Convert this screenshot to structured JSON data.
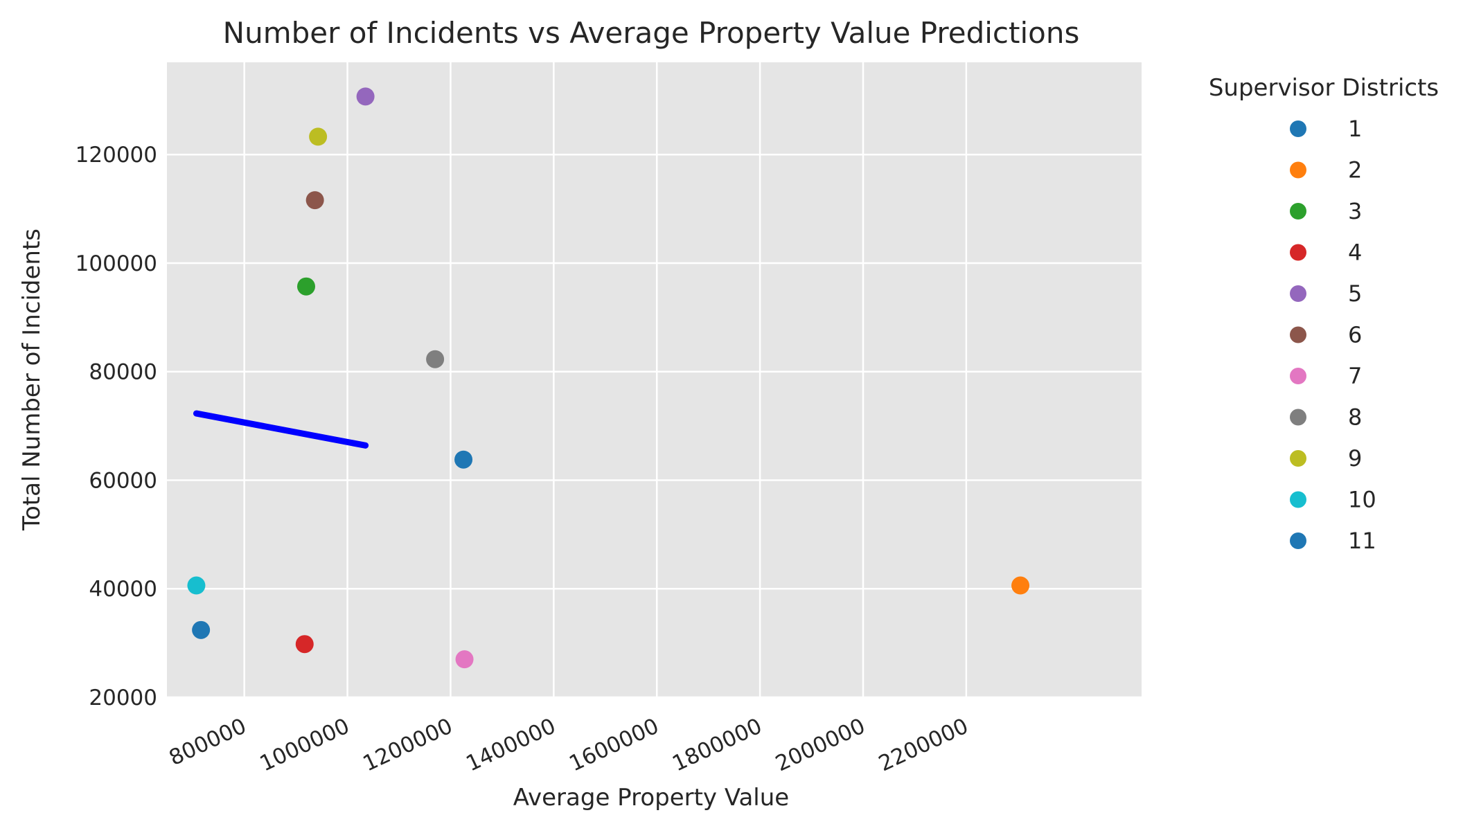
{
  "chart_data": {
    "type": "scatter",
    "title": "Number of Incidents vs Average Property Value Predictions",
    "xlabel": "Average Property Value",
    "ylabel": "Total Number of Incidents",
    "xlim": [
      650000,
      2540000
    ],
    "ylim": [
      20000,
      137000
    ],
    "x_ticks": [
      800000,
      1000000,
      1200000,
      1400000,
      1600000,
      1800000,
      2000000,
      2200000
    ],
    "y_ticks": [
      20000,
      40000,
      60000,
      80000,
      100000,
      120000
    ],
    "x_tick_labels": [
      "800000",
      "1000000",
      "1200000",
      "1400000",
      "1600000",
      "1800000",
      "2000000",
      "2200000"
    ],
    "y_tick_labels": [
      "20000",
      "40000",
      "60000",
      "80000",
      "100000",
      "120000"
    ],
    "x_tick_rotation_deg": -25,
    "grid": true,
    "background": "#e5e5e5",
    "legend": {
      "title": "Supervisor Districts",
      "placement": "outside-right"
    },
    "series": [
      {
        "name": "1",
        "color": "#1f77b4",
        "points": [
          [
            1225000,
            63800
          ]
        ]
      },
      {
        "name": "2",
        "color": "#ff7f0e",
        "points": [
          [
            2305000,
            40600
          ]
        ]
      },
      {
        "name": "3",
        "color": "#2ca02c",
        "points": [
          [
            920000,
            95700
          ]
        ]
      },
      {
        "name": "4",
        "color": "#d62728",
        "points": [
          [
            917000,
            29800
          ]
        ]
      },
      {
        "name": "5",
        "color": "#9467bd",
        "points": [
          [
            1035000,
            130700
          ]
        ]
      },
      {
        "name": "6",
        "color": "#8c564b",
        "points": [
          [
            937000,
            111600
          ]
        ]
      },
      {
        "name": "7",
        "color": "#e377c2",
        "points": [
          [
            1227000,
            27000
          ]
        ]
      },
      {
        "name": "8",
        "color": "#7f7f7f",
        "points": [
          [
            1170000,
            82300
          ]
        ]
      },
      {
        "name": "9",
        "color": "#bcbd22",
        "points": [
          [
            943000,
            123300
          ]
        ]
      },
      {
        "name": "10",
        "color": "#17becf",
        "points": [
          [
            707000,
            40600
          ]
        ]
      },
      {
        "name": "11",
        "color": "#1f77b4",
        "points": [
          [
            716000,
            32400
          ]
        ]
      }
    ],
    "prediction_line": {
      "color": "#0000ff",
      "points": [
        [
          707000,
          72300
        ],
        [
          1035000,
          66400
        ]
      ]
    }
  }
}
